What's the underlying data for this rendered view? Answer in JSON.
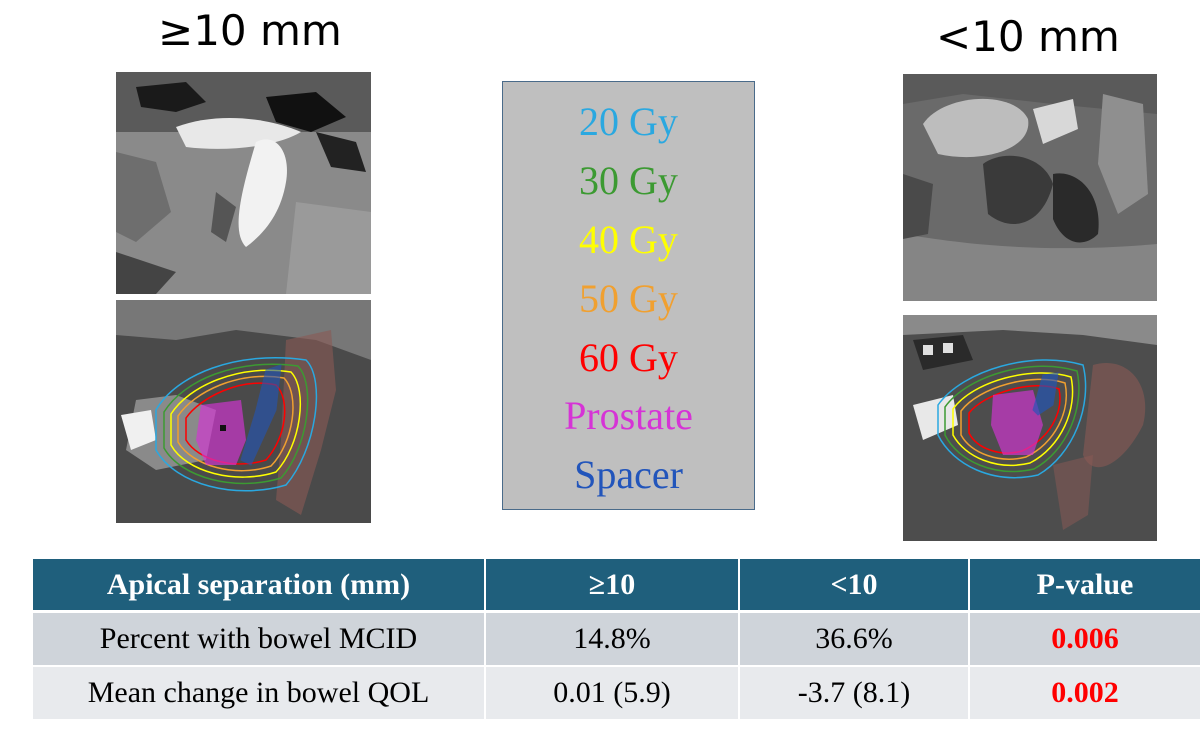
{
  "titles": {
    "left": "≥10 mm",
    "right": "<10 mm"
  },
  "legend": {
    "items": [
      {
        "label": "20 Gy",
        "color": "#2aa8e0"
      },
      {
        "label": "30 Gy",
        "color": "#3c9a32"
      },
      {
        "label": "40 Gy",
        "color": "#ffff00"
      },
      {
        "label": "50 Gy",
        "color": "#f0a030"
      },
      {
        "label": "60 Gy",
        "color": "#ff0000"
      },
      {
        "label": "Prostate",
        "color": "#d633d6"
      },
      {
        "label": "Spacer",
        "color": "#2255bb"
      }
    ]
  },
  "table": {
    "headers": [
      "Apical separation (mm)",
      "≥10",
      "<10",
      "P-value"
    ],
    "rows": [
      [
        "Percent with bowel MCID",
        "14.8%",
        "36.6%",
        "0.006"
      ],
      [
        "Mean change in bowel QOL",
        "0.01 (5.9)",
        "-3.7 (8.1)",
        "0.002"
      ]
    ],
    "header_color": "#1f5f7c",
    "pvalue_color": "#ff0000"
  }
}
